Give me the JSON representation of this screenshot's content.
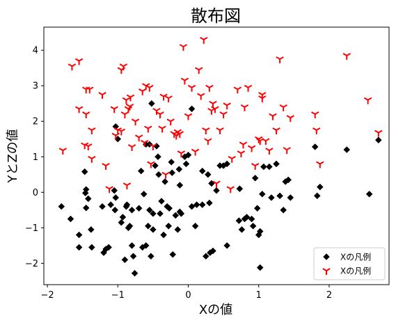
{
  "chart_data": {
    "type": "scatter",
    "title": "散布図",
    "xlabel": "Xの値",
    "ylabel": "YとZの値",
    "xlim": [
      -2.05,
      2.85
    ],
    "ylim": [
      -2.6,
      4.65
    ],
    "xticks": [
      -2,
      -1,
      0,
      1,
      2
    ],
    "yticks": [
      -2,
      -1,
      0,
      1,
      2,
      3,
      4
    ],
    "xtick_labels": [
      "−2",
      "−1",
      "0",
      "1",
      "2"
    ],
    "ytick_labels": [
      "−2",
      "−1",
      "0",
      "1",
      "2",
      "3",
      "4"
    ],
    "legend_position": "lower-right",
    "series": [
      {
        "name": "Xの凡例",
        "marker": "diamond",
        "color": "#000000",
        "points": [
          [
            -1.8,
            -0.4
          ],
          [
            -1.67,
            -0.75
          ],
          [
            -1.55,
            -1.55
          ],
          [
            -1.55,
            -1.2
          ],
          [
            -1.47,
            0.58
          ],
          [
            -1.46,
            -0.02
          ],
          [
            -1.45,
            0.08
          ],
          [
            -1.45,
            -0.44
          ],
          [
            -1.42,
            -0.18
          ],
          [
            -1.38,
            -1.05
          ],
          [
            -1.37,
            -1.55
          ],
          [
            -1.22,
            -0.4
          ],
          [
            -1.2,
            -1.7
          ],
          [
            -1.17,
            -1.6
          ],
          [
            -1.13,
            -1.55
          ],
          [
            -1.1,
            -0.35
          ],
          [
            -1.05,
            0.05
          ],
          [
            -1.04,
            -0.5
          ],
          [
            -1.03,
            -0.15
          ],
          [
            -1.03,
            1.85
          ],
          [
            -1.0,
            1.5
          ],
          [
            -0.95,
            -0.85
          ],
          [
            -0.93,
            -0.7
          ],
          [
            -0.9,
            -1.9
          ],
          [
            -0.88,
            -0.4
          ],
          [
            -0.87,
            -0.35
          ],
          [
            -0.85,
            -1.0
          ],
          [
            -0.83,
            -0.95
          ],
          [
            -0.8,
            -0.5
          ],
          [
            -0.8,
            -1.5
          ],
          [
            -0.78,
            -1.8
          ],
          [
            -0.76,
            -2.28
          ],
          [
            -0.7,
            -0.45
          ],
          [
            -0.67,
            0.6
          ],
          [
            -0.65,
            -1.55
          ],
          [
            -0.63,
            -0.05
          ],
          [
            -0.6,
            1.35
          ],
          [
            -0.6,
            -1.5
          ],
          [
            -0.57,
            -0.95
          ],
          [
            -0.55,
            -0.5
          ],
          [
            -0.55,
            1.35
          ],
          [
            -0.53,
            -1.8
          ],
          [
            -0.52,
            2.5
          ],
          [
            -0.5,
            -1.05
          ],
          [
            -0.5,
            -0.6
          ],
          [
            -0.47,
            0.75
          ],
          [
            -0.45,
            1.3
          ],
          [
            -0.43,
            1.0
          ],
          [
            -0.42,
            0.5
          ],
          [
            -0.4,
            -0.6
          ],
          [
            -0.38,
            -0.25
          ],
          [
            -0.35,
            -1.2
          ],
          [
            -0.33,
            0.3
          ],
          [
            -0.3,
            -0.4
          ],
          [
            -0.28,
            -0.95
          ],
          [
            -0.27,
            -0.45
          ],
          [
            -0.24,
            0.85
          ],
          [
            -0.23,
            0.55
          ],
          [
            -0.22,
            -1.75
          ],
          [
            -0.18,
            -0.65
          ],
          [
            -0.15,
            -1.05
          ],
          [
            -0.13,
            0.65
          ],
          [
            -0.12,
            0.2
          ],
          [
            -0.12,
            -0.55
          ],
          [
            -0.1,
            -0.6
          ],
          [
            -0.05,
            1.0
          ],
          [
            -0.03,
            0.8
          ],
          [
            0.0,
            1.05
          ],
          [
            0.05,
            2.35
          ],
          [
            0.05,
            -0.4
          ],
          [
            0.1,
            -0.95
          ],
          [
            0.12,
            -0.35
          ],
          [
            0.2,
            0.6
          ],
          [
            0.2,
            -0.35
          ],
          [
            0.25,
            -1.8
          ],
          [
            0.28,
            0.5
          ],
          [
            0.3,
            -0.3
          ],
          [
            0.31,
            -1.7
          ],
          [
            0.33,
            0.25
          ],
          [
            0.35,
            -1.65
          ],
          [
            0.4,
            0.05
          ],
          [
            0.45,
            0.75
          ],
          [
            0.5,
            0.75
          ],
          [
            0.55,
            0.8
          ],
          [
            0.55,
            -1.5
          ],
          [
            0.72,
            -0.8
          ],
          [
            0.73,
            0.1
          ],
          [
            0.76,
            -1.05
          ],
          [
            0.8,
            -0.75
          ],
          [
            0.83,
            -0.7
          ],
          [
            0.9,
            -0.75
          ],
          [
            0.92,
            -0.95
          ],
          [
            0.95,
            0.4
          ],
          [
            0.98,
            -0.45
          ],
          [
            1.0,
            -1.2
          ],
          [
            1.02,
            -1.1
          ],
          [
            1.02,
            -2.12
          ],
          [
            1.05,
            -0.05
          ],
          [
            1.07,
            0.72
          ],
          [
            1.15,
            0.72
          ],
          [
            1.18,
            -0.15
          ],
          [
            1.25,
            0.8
          ],
          [
            1.3,
            -0.1
          ],
          [
            1.35,
            -0.5
          ],
          [
            1.38,
            0.3
          ],
          [
            1.42,
            0.35
          ],
          [
            1.45,
            -0.15
          ],
          [
            1.8,
            1.28
          ],
          [
            1.83,
            -0.1
          ],
          [
            1.87,
            0.15
          ],
          [
            2.25,
            1.2
          ],
          [
            2.57,
            -0.05
          ],
          [
            2.7,
            1.47
          ]
        ]
      },
      {
        "name": "Xの凡例",
        "marker": "tri-down",
        "color": "#ff0000",
        "points": [
          [
            -1.78,
            1.18
          ],
          [
            -1.65,
            3.55
          ],
          [
            -1.55,
            3.7
          ],
          [
            -1.55,
            2.35
          ],
          [
            -1.47,
            1.33
          ],
          [
            -1.45,
            2.2
          ],
          [
            -1.45,
            2.9
          ],
          [
            -1.42,
            1.3
          ],
          [
            -1.4,
            2.9
          ],
          [
            -1.37,
            0.95
          ],
          [
            -1.37,
            1.75
          ],
          [
            -1.22,
            2.75
          ],
          [
            -1.17,
            0.75
          ],
          [
            -1.12,
            0.1
          ],
          [
            -1.05,
            2.35
          ],
          [
            -1.03,
            1.6
          ],
          [
            -1.0,
            1.75
          ],
          [
            -0.95,
            3.45
          ],
          [
            -0.95,
            1.72
          ],
          [
            -0.92,
            3.55
          ],
          [
            -0.9,
            2.2
          ],
          [
            -0.88,
            2.6
          ],
          [
            -0.87,
            0.2
          ],
          [
            -0.85,
            2.35
          ],
          [
            -0.83,
            2.42
          ],
          [
            -0.82,
            2.68
          ],
          [
            -0.8,
            1.28
          ],
          [
            -0.75,
            2.0
          ],
          [
            -0.7,
            1.55
          ],
          [
            -0.65,
            2.85
          ],
          [
            -0.62,
            1.4
          ],
          [
            -0.6,
            3.0
          ],
          [
            -0.57,
            1.8
          ],
          [
            -0.55,
            2.95
          ],
          [
            -0.53,
            0.8
          ],
          [
            -0.5,
            1.3
          ],
          [
            -0.45,
            2.3
          ],
          [
            -0.4,
            2.2
          ],
          [
            -0.37,
            1.8
          ],
          [
            -0.35,
            2.7
          ],
          [
            -0.32,
            0.5
          ],
          [
            -0.28,
            2.65
          ],
          [
            -0.25,
            2.0
          ],
          [
            -0.2,
            1.65
          ],
          [
            -0.17,
            1.6
          ],
          [
            -0.15,
            1.7
          ],
          [
            -0.12,
            1.65
          ],
          [
            -0.1,
            1.1
          ],
          [
            -0.07,
            4.1
          ],
          [
            -0.05,
            3.15
          ],
          [
            0.0,
            2.15
          ],
          [
            0.05,
            2.95
          ],
          [
            0.1,
            1.15
          ],
          [
            0.15,
            3.45
          ],
          [
            0.18,
            2.72
          ],
          [
            0.22,
            4.3
          ],
          [
            0.25,
            1.75
          ],
          [
            0.28,
            1.45
          ],
          [
            0.3,
            2.95
          ],
          [
            0.33,
            2.3
          ],
          [
            0.35,
            2.5
          ],
          [
            0.38,
            2.35
          ],
          [
            0.4,
            0.25
          ],
          [
            0.45,
            1.75
          ],
          [
            0.5,
            2.2
          ],
          [
            0.55,
            2.45
          ],
          [
            0.6,
            0.1
          ],
          [
            0.62,
            0.95
          ],
          [
            0.7,
            2.9
          ],
          [
            0.75,
            1.1
          ],
          [
            0.78,
            1.35
          ],
          [
            0.8,
            2.4
          ],
          [
            0.85,
            2.95
          ],
          [
            0.9,
            1.25
          ],
          [
            0.95,
            0.75
          ],
          [
            1.0,
            1.5
          ],
          [
            1.02,
            1.45
          ],
          [
            1.05,
            2.65
          ],
          [
            1.05,
            2.75
          ],
          [
            1.1,
            1.45
          ],
          [
            1.15,
            1.18
          ],
          [
            1.2,
            2.15
          ],
          [
            1.25,
            1.75
          ],
          [
            1.3,
            3.75
          ],
          [
            1.35,
            2.4
          ],
          [
            1.4,
            1.2
          ],
          [
            1.45,
            2.1
          ],
          [
            1.8,
            2.2
          ],
          [
            1.82,
            1.75
          ],
          [
            1.87,
            0.8
          ],
          [
            2.25,
            3.85
          ],
          [
            2.55,
            2.6
          ],
          [
            2.7,
            1.68
          ]
        ]
      }
    ]
  }
}
